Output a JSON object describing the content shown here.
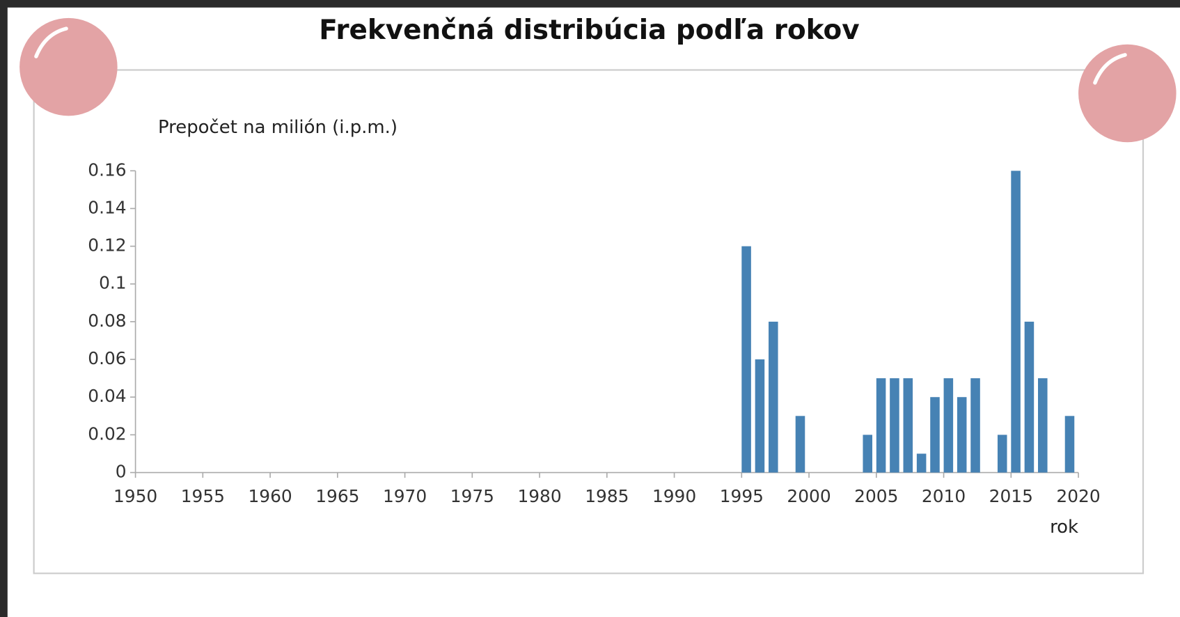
{
  "chart_data": {
    "type": "bar",
    "title": "Frekvenčná distribúcia podľa rokov",
    "y_label": "Prepočet na milión (i.p.m.)",
    "x_label": "rok",
    "x": [
      1995,
      1996,
      1997,
      1999,
      2004,
      2005,
      2006,
      2007,
      2008,
      2009,
      2010,
      2011,
      2012,
      2014,
      2015,
      2016,
      2017,
      2019
    ],
    "values": [
      0.12,
      0.06,
      0.08,
      0.03,
      0.02,
      0.05,
      0.05,
      0.05,
      0.01,
      0.04,
      0.05,
      0.04,
      0.05,
      0.02,
      0.16,
      0.08,
      0.05,
      0.03
    ],
    "color": "#4682b4",
    "xlim": [
      1950,
      2020
    ],
    "xticks": [
      1950,
      1955,
      1960,
      1965,
      1970,
      1975,
      1980,
      1985,
      1990,
      1995,
      2000,
      2005,
      2010,
      2015,
      2020
    ],
    "ylim": [
      0,
      0.16
    ],
    "yticks": [
      0,
      0.02,
      0.04,
      0.06,
      0.08,
      0.1,
      0.12,
      0.14,
      0.16
    ]
  }
}
